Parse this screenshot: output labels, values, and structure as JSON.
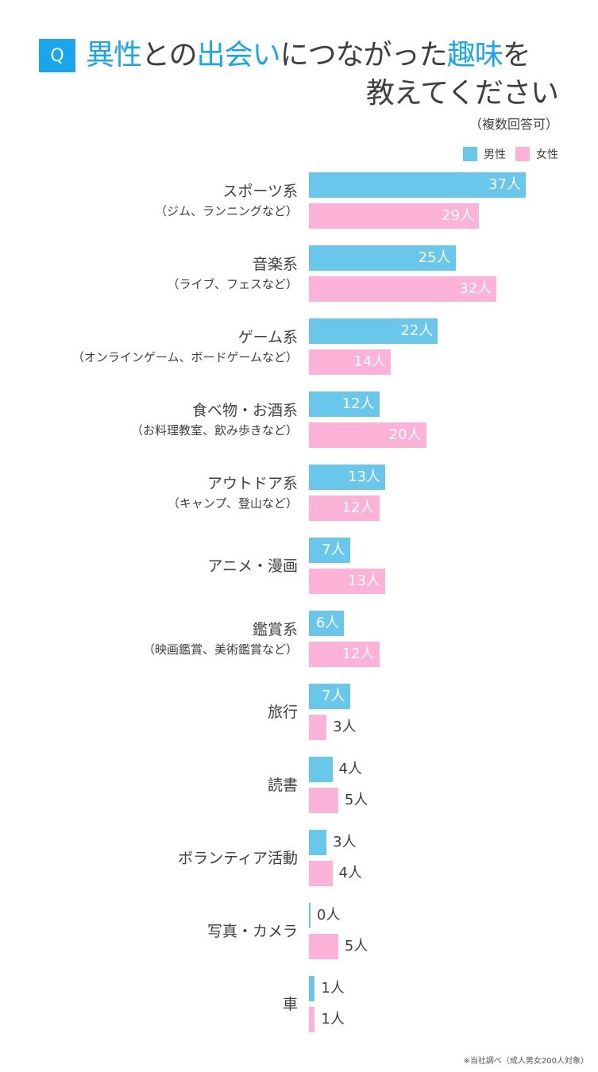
{
  "header": {
    "q_badge": "Q",
    "title_parts": [
      "異性",
      "との",
      "出会い",
      "につながった",
      "趣味",
      "を"
    ],
    "title_line2": "教えてください",
    "note": "（複数回答可）"
  },
  "legend": {
    "male": {
      "label": "男性",
      "color": "#6ac7ec"
    },
    "female": {
      "label": "女性",
      "color": "#fdb2d8"
    }
  },
  "footnote": "※当社調べ（成人男女200人対象）",
  "chart_data": {
    "type": "bar",
    "orientation": "horizontal",
    "title": "異性との出会いにつながった趣味を教えてください（複数回答可）",
    "unit": "人",
    "categories": [
      "スポーツ系",
      "音楽系",
      "ゲーム系",
      "食べ物・お酒系",
      "アウトドア系",
      "アニメ・漫画",
      "鑑賞系",
      "旅行",
      "読書",
      "ボランティア活動",
      "写真・カメラ",
      "車"
    ],
    "category_notes": [
      "（ジム、ランニングなど）",
      "（ライブ、フェスなど）",
      "（オンラインゲーム、ボードゲームなど）",
      "（お料理教室、飲み歩きなど）",
      "（キャンプ、登山など）",
      "",
      "（映画鑑賞、美術鑑賞など）",
      "",
      "",
      "",
      "",
      ""
    ],
    "series": [
      {
        "name": "男性",
        "color": "#6ac7ec",
        "values": [
          37,
          25,
          22,
          12,
          13,
          7,
          6,
          7,
          4,
          3,
          0,
          1
        ]
      },
      {
        "name": "女性",
        "color": "#fdb2d8",
        "values": [
          29,
          32,
          14,
          20,
          12,
          13,
          12,
          3,
          5,
          4,
          5,
          1
        ]
      }
    ],
    "legend_position": "top-right",
    "grid": false,
    "footnote": "※当社調べ（成人男女200人対象）"
  }
}
